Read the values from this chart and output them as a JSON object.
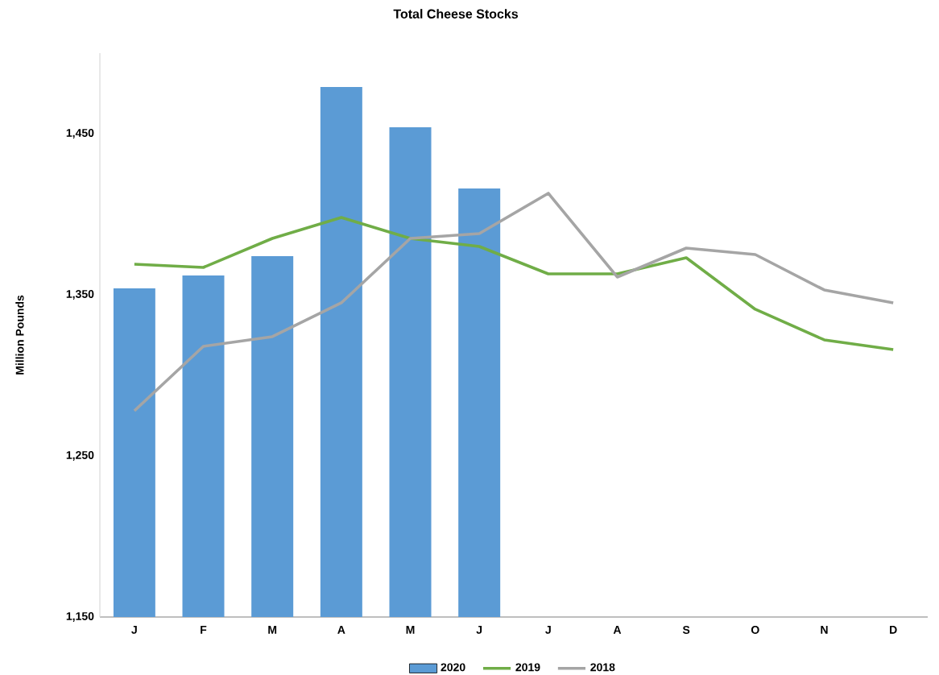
{
  "chart_data": {
    "type": "bar",
    "title": "Total Cheese Stocks",
    "ylabel": "Million Pounds",
    "categories": [
      "J",
      "F",
      "M",
      "A",
      "M",
      "J",
      "J",
      "A",
      "S",
      "O",
      "N",
      "D"
    ],
    "series": [
      {
        "name": "2020",
        "color": "#5b9bd5",
        "values": [
          1354,
          1362,
          1374,
          1479,
          1454,
          1416,
          null,
          null,
          null,
          null,
          null,
          null
        ]
      },
      {
        "name": "2019",
        "type": "line",
        "color": "#70ad47",
        "values": [
          1369,
          1367,
          1385,
          1398,
          1385,
          1380,
          1363,
          1363,
          1373,
          1341,
          1322,
          1316
        ]
      },
      {
        "name": "2018",
        "type": "line",
        "color": "#a5a5a5",
        "values": [
          1278,
          1318,
          1324,
          1345,
          1385,
          1388,
          1413,
          1361,
          1379,
          1375,
          1353,
          1345
        ]
      }
    ],
    "ylim": [
      1150,
      1500
    ],
    "yticks": [
      {
        "value": 1150,
        "label": "1,150"
      },
      {
        "value": 1250,
        "label": "1,250"
      },
      {
        "value": 1350,
        "label": "1,350"
      },
      {
        "value": 1450,
        "label": "1,450"
      }
    ],
    "grid": false,
    "legend": "bottom"
  }
}
